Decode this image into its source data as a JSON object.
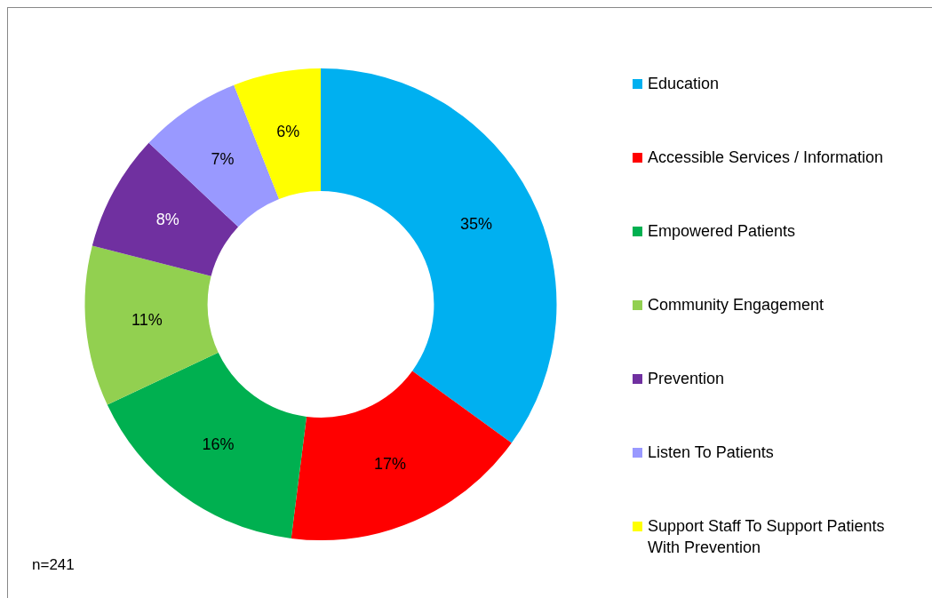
{
  "chart_data": {
    "type": "donut",
    "categories": [
      "Education",
      "Accessible Services / Information",
      "Empowered Patients",
      "Community Engagement",
      "Prevention",
      "Listen To Patients",
      "Support Staff To Support Patients With Prevention"
    ],
    "values": [
      35,
      17,
      16,
      11,
      8,
      7,
      6
    ],
    "colors": [
      "#00b0f0",
      "#ff0000",
      "#00b050",
      "#92d050",
      "#7030a0",
      "#9999ff",
      "#ffff00"
    ],
    "value_labels": [
      "35%",
      "17%",
      "16%",
      "11%",
      "8%",
      "7%",
      "6%"
    ],
    "legend": "right",
    "annotations": [
      "n=241"
    ]
  }
}
